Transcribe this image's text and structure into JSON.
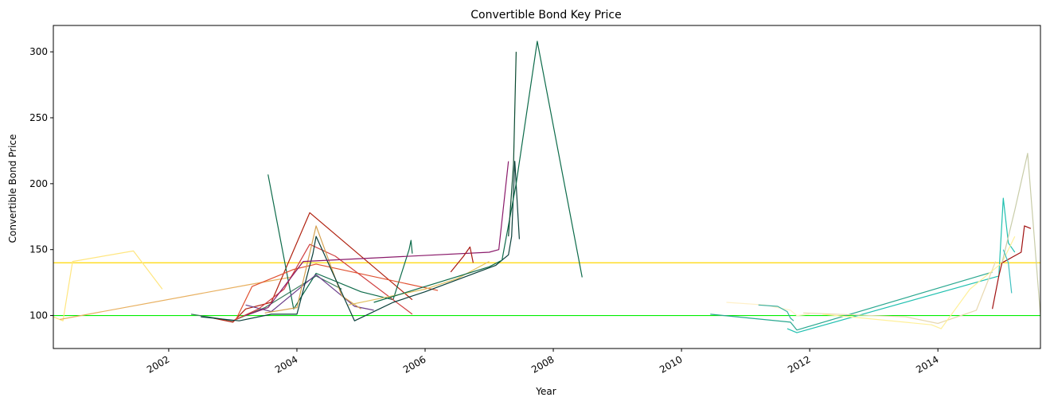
{
  "chart_data": {
    "type": "line",
    "title": "Convertible Bond Key Price",
    "xlabel": "Year",
    "ylabel": "Convertible Bond Price",
    "xlim": [
      2000.2,
      2015.6
    ],
    "ylim": [
      75,
      320
    ],
    "x_ticks": [
      2002,
      2004,
      2006,
      2008,
      2010,
      2012,
      2014
    ],
    "x_tick_labels": [
      "2002",
      "2004",
      "2006",
      "2008",
      "2010",
      "2012",
      "2014"
    ],
    "y_ticks": [
      100,
      150,
      200,
      250,
      300
    ],
    "y_tick_labels": [
      "100",
      "150",
      "200",
      "250",
      "300"
    ],
    "grid": false,
    "legend": "none",
    "reference_lines": [
      {
        "y": 100,
        "color": "#00ee00"
      },
      {
        "y": 140,
        "color": "#ffd700"
      }
    ],
    "series": [
      {
        "color": "#ffe680",
        "x": [
          2000.2,
          2000.35,
          2000.5,
          2001.45,
          2001.9
        ],
        "y": [
          99,
          96,
          141,
          149,
          120
        ]
      },
      {
        "color": "#e8b060",
        "x": [
          2000.3,
          2003.2,
          2003.9,
          2004.1
        ],
        "y": [
          97,
          123,
          129,
          141
        ]
      },
      {
        "color": "#3a7a5c",
        "x": [
          2002.35,
          2003.0,
          2003.5,
          2004.3,
          2004.7
        ],
        "y": [
          101,
          96,
          106,
          130,
          120
        ]
      },
      {
        "color": "#b0200e",
        "x": [
          2002.7,
          2003.0,
          2003.2,
          2003.6,
          2004.2,
          2005.8
        ],
        "y": [
          98,
          95,
          105,
          110,
          178,
          112
        ]
      },
      {
        "color": "#0d6b4a",
        "x": [
          2003.55,
          2003.95,
          2004.3,
          2005.0,
          2005.5,
          2005.75,
          2005.78,
          2005.8
        ],
        "y": [
          207,
          105,
          132,
          118,
          112,
          150,
          157,
          147
        ]
      },
      {
        "color": "#6a3d8a",
        "x": [
          2003.2,
          2003.6,
          2004.3,
          2004.9,
          2005.2
        ],
        "y": [
          108,
          103,
          131,
          107,
          104
        ]
      },
      {
        "color": "#d04040",
        "x": [
          2003.0,
          2003.4,
          2003.8,
          2004.2,
          2004.6,
          2005.8
        ],
        "y": [
          96,
          105,
          120,
          154,
          145,
          101
        ]
      },
      {
        "color": "#e05030",
        "x": [
          2003.05,
          2003.3,
          2003.95,
          2004.3,
          2006.2
        ],
        "y": [
          97,
          122,
          135,
          139,
          119
        ]
      },
      {
        "color": "#d4a050",
        "x": [
          2003.5,
          2004.0,
          2004.3,
          2004.7,
          2005.0
        ],
        "y": [
          102,
          106,
          168,
          115,
          105
        ]
      },
      {
        "color": "#0a3f3a",
        "x": [
          2002.5,
          2003.1,
          2003.6,
          2004.0,
          2004.25,
          2004.3,
          2004.9,
          2005.5,
          2006.0,
          2007.1,
          2007.3,
          2007.35,
          2007.4,
          2007.47
        ],
        "y": [
          99,
          96,
          101,
          101,
          147,
          160,
          96,
          110,
          118,
          138,
          146,
          160,
          217,
          158
        ]
      },
      {
        "color": "#8a1a6a",
        "x": [
          2003.2,
          2003.55,
          2004.1,
          2007.0,
          2007.15,
          2007.3
        ],
        "y": [
          100,
          106,
          141,
          148,
          150,
          217
        ]
      },
      {
        "color": "#a81a14",
        "x": [
          2006.4,
          2006.6,
          2006.7,
          2006.75
        ],
        "y": [
          133,
          145,
          152,
          140
        ]
      },
      {
        "color": "#e0c060",
        "x": [
          2004.8,
          2006.0,
          2006.5,
          2007.0
        ],
        "y": [
          108,
          120,
          128,
          141
        ]
      },
      {
        "color": "#0d6b4a",
        "x": [
          2005.2,
          2007.0,
          2007.2,
          2007.42,
          2007.75,
          2008.45
        ],
        "y": [
          110,
          137,
          142,
          200,
          308,
          129
        ]
      },
      {
        "color": "#0a4a30",
        "x": [
          2007.3,
          2007.38,
          2007.42
        ],
        "y": [
          160,
          215,
          300
        ]
      },
      {
        "color": "#fff0c8",
        "x": [
          2010.7,
          2011.3,
          2011.7,
          2011.8,
          2012.0
        ],
        "y": [
          110,
          108,
          104,
          100,
          101
        ]
      },
      {
        "color": "#3ab0a0",
        "x": [
          2011.2,
          2011.5,
          2011.65,
          2011.7,
          2011.75
        ],
        "y": [
          108,
          107,
          103,
          98,
          96
        ]
      },
      {
        "color": "#2aa890",
        "x": [
          2010.45,
          2011.7,
          2011.8,
          2014.85
        ],
        "y": [
          101,
          95,
          89,
          133
        ]
      },
      {
        "color": "#20c0b0",
        "x": [
          2011.65,
          2011.8,
          2014.95,
          2015.02,
          2015.1,
          2015.2
        ],
        "y": [
          90,
          87,
          130,
          189,
          155,
          148
        ]
      },
      {
        "color": "#e8d8b0",
        "x": [
          2011.9,
          2013.5,
          2014.0,
          2014.6,
          2014.9
        ],
        "y": [
          102,
          99,
          94,
          104,
          141
        ]
      },
      {
        "color": "#fff09a",
        "x": [
          2012.2,
          2013.9,
          2014.05,
          2014.5,
          2015.0,
          2015.2
        ],
        "y": [
          101,
          93,
          90,
          120,
          140,
          160
        ]
      },
      {
        "color": "#a01010",
        "x": [
          2014.85,
          2014.95,
          2015.0,
          2015.3,
          2015.35,
          2015.45
        ],
        "y": [
          105,
          130,
          140,
          148,
          168,
          166
        ]
      },
      {
        "color": "#c8cca8",
        "x": [
          2015.0,
          2015.2,
          2015.4,
          2015.6
        ],
        "y": [
          140,
          180,
          223,
          100
        ]
      },
      {
        "color": "#40c0c0",
        "x": [
          2015.02,
          2015.1,
          2015.15
        ],
        "y": [
          150,
          140,
          117
        ]
      }
    ]
  }
}
